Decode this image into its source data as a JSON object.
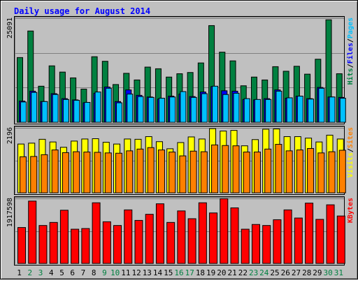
{
  "chart_data": {
    "type": "bar",
    "title": "Daily usage for August 2014",
    "categories": [
      "1",
      "2",
      "3",
      "4",
      "5",
      "6",
      "7",
      "8",
      "9",
      "10",
      "11",
      "12",
      "13",
      "14",
      "15",
      "16",
      "17",
      "18",
      "19",
      "20",
      "21",
      "22",
      "23",
      "24",
      "25",
      "26",
      "27",
      "28",
      "29",
      "30",
      "31"
    ],
    "weekend_days": [
      "2",
      "3",
      "9",
      "10",
      "16",
      "17",
      "23",
      "24",
      "30",
      "31"
    ],
    "panels": [
      {
        "id": "pages-files-hits",
        "y_max_label": "25091",
        "ylim": [
          0,
          25091
        ],
        "legend": [
          "Pages",
          "/",
          "Files",
          "/",
          "Hits"
        ],
        "series": [
          {
            "name": "Hits",
            "color": "#008040",
            "values": [
              15600,
              22000,
              8700,
              13600,
              12100,
              10700,
              8000,
              15800,
              14700,
              9100,
              11800,
              10200,
              13300,
              12900,
              10900,
              11700,
              12000,
              14300,
              23300,
              16900,
              14800,
              8800,
              10900,
              10200,
              13400,
              12300,
              13500,
              11600,
              15200,
              24700,
              11700
            ]
          },
          {
            "name": "Files",
            "color": "#0000FF",
            "values": [
              5100,
              7500,
              5000,
              6900,
              5700,
              5400,
              4700,
              7000,
              8500,
              5000,
              7800,
              6500,
              6100,
              5600,
              6300,
              6800,
              6200,
              7300,
              8600,
              7600,
              7500,
              5500,
              5400,
              5700,
              7800,
              5800,
              6300,
              5700,
              8400,
              6100,
              6000
            ]
          },
          {
            "name": "Pages",
            "color": "#00C0FF",
            "values": [
              4900,
              7200,
              5000,
              6700,
              5500,
              5300,
              4800,
              7300,
              8200,
              4700,
              6800,
              6200,
              6000,
              5800,
              6100,
              7400,
              6000,
              6900,
              8700,
              6700,
              7000,
              5700,
              5500,
              5500,
              7500,
              5900,
              6300,
              5600,
              8200,
              6100,
              5800
            ]
          }
        ]
      },
      {
        "id": "visits-sites",
        "y_max_label": "2196",
        "ylim": [
          0,
          2196
        ],
        "legend": [
          "Sites",
          "/",
          "Visits"
        ],
        "series": [
          {
            "name": "Visits",
            "color": "#FFFF00",
            "values": [
              1650,
              1680,
              1810,
              1720,
              1540,
              1750,
              1820,
              1830,
              1710,
              1650,
              1820,
              1810,
              1900,
              1730,
              1490,
              1700,
              1890,
              1820,
              2170,
              2090,
              2110,
              1590,
              1800,
              2150,
              2160,
              1900,
              1900,
              1850,
              1720,
              1950,
              1820
            ]
          },
          {
            "name": "Sites",
            "color": "#FF8000",
            "values": [
              1220,
              1230,
              1290,
              1450,
              1360,
              1390,
              1380,
              1370,
              1350,
              1340,
              1420,
              1480,
              1530,
              1450,
              1380,
              1250,
              1410,
              1390,
              1620,
              1600,
              1590,
              1380,
              1380,
              1480,
              1640,
              1420,
              1450,
              1500,
              1350,
              1390,
              1440
            ]
          }
        ]
      },
      {
        "id": "kbytes",
        "y_max_label": "1917598",
        "ylim": [
          0,
          1917598
        ],
        "legend": [
          "KBytes"
        ],
        "series": [
          {
            "name": "KBytes",
            "color": "#FF0000",
            "values": [
              1060000,
              1840000,
              1120000,
              1210000,
              1570000,
              1010000,
              1030000,
              1790000,
              1230000,
              1120000,
              1580000,
              1270000,
              1450000,
              1760000,
              1210000,
              1550000,
              1320000,
              1790000,
              1490000,
              1910000,
              1640000,
              1010000,
              1150000,
              1120000,
              1290000,
              1580000,
              1340000,
              1780000,
              1300000,
              1730000,
              1400000
            ]
          }
        ]
      }
    ]
  }
}
